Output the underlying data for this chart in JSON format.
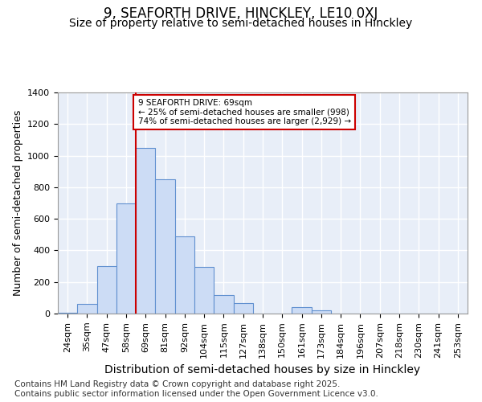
{
  "title_line1": "9, SEAFORTH DRIVE, HINCKLEY, LE10 0XJ",
  "title_line2": "Size of property relative to semi-detached houses in Hinckley",
  "xlabel": "Distribution of semi-detached houses by size in Hinckley",
  "ylabel": "Number of semi-detached properties",
  "categories": [
    "24sqm",
    "35sqm",
    "47sqm",
    "58sqm",
    "69sqm",
    "81sqm",
    "92sqm",
    "104sqm",
    "115sqm",
    "127sqm",
    "138sqm",
    "150sqm",
    "161sqm",
    "173sqm",
    "184sqm",
    "196sqm",
    "207sqm",
    "218sqm",
    "230sqm",
    "241sqm",
    "253sqm"
  ],
  "values": [
    5,
    60,
    300,
    700,
    1050,
    850,
    490,
    295,
    115,
    65,
    0,
    0,
    40,
    20,
    0,
    0,
    0,
    0,
    0,
    0,
    0
  ],
  "bar_color": "#ccdcf5",
  "bar_edge_color": "#6090d0",
  "vline_x_index": 4,
  "vline_color": "#cc0000",
  "annotation_text": "9 SEAFORTH DRIVE: 69sqm\n← 25% of semi-detached houses are smaller (998)\n74% of semi-detached houses are larger (2,929) →",
  "annotation_box_color": "#cc0000",
  "annotation_fill": "#ffffff",
  "footnote": "Contains HM Land Registry data © Crown copyright and database right 2025.\nContains public sector information licensed under the Open Government Licence v3.0.",
  "ylim": [
    0,
    1400
  ],
  "yticks": [
    0,
    200,
    400,
    600,
    800,
    1000,
    1200,
    1400
  ],
  "fig_bg_color": "#ffffff",
  "plot_bg_color": "#e8eef8",
  "grid_color": "#ffffff",
  "title_fontsize": 12,
  "subtitle_fontsize": 10,
  "xlabel_fontsize": 10,
  "ylabel_fontsize": 9,
  "tick_fontsize": 8,
  "footnote_fontsize": 7.5
}
